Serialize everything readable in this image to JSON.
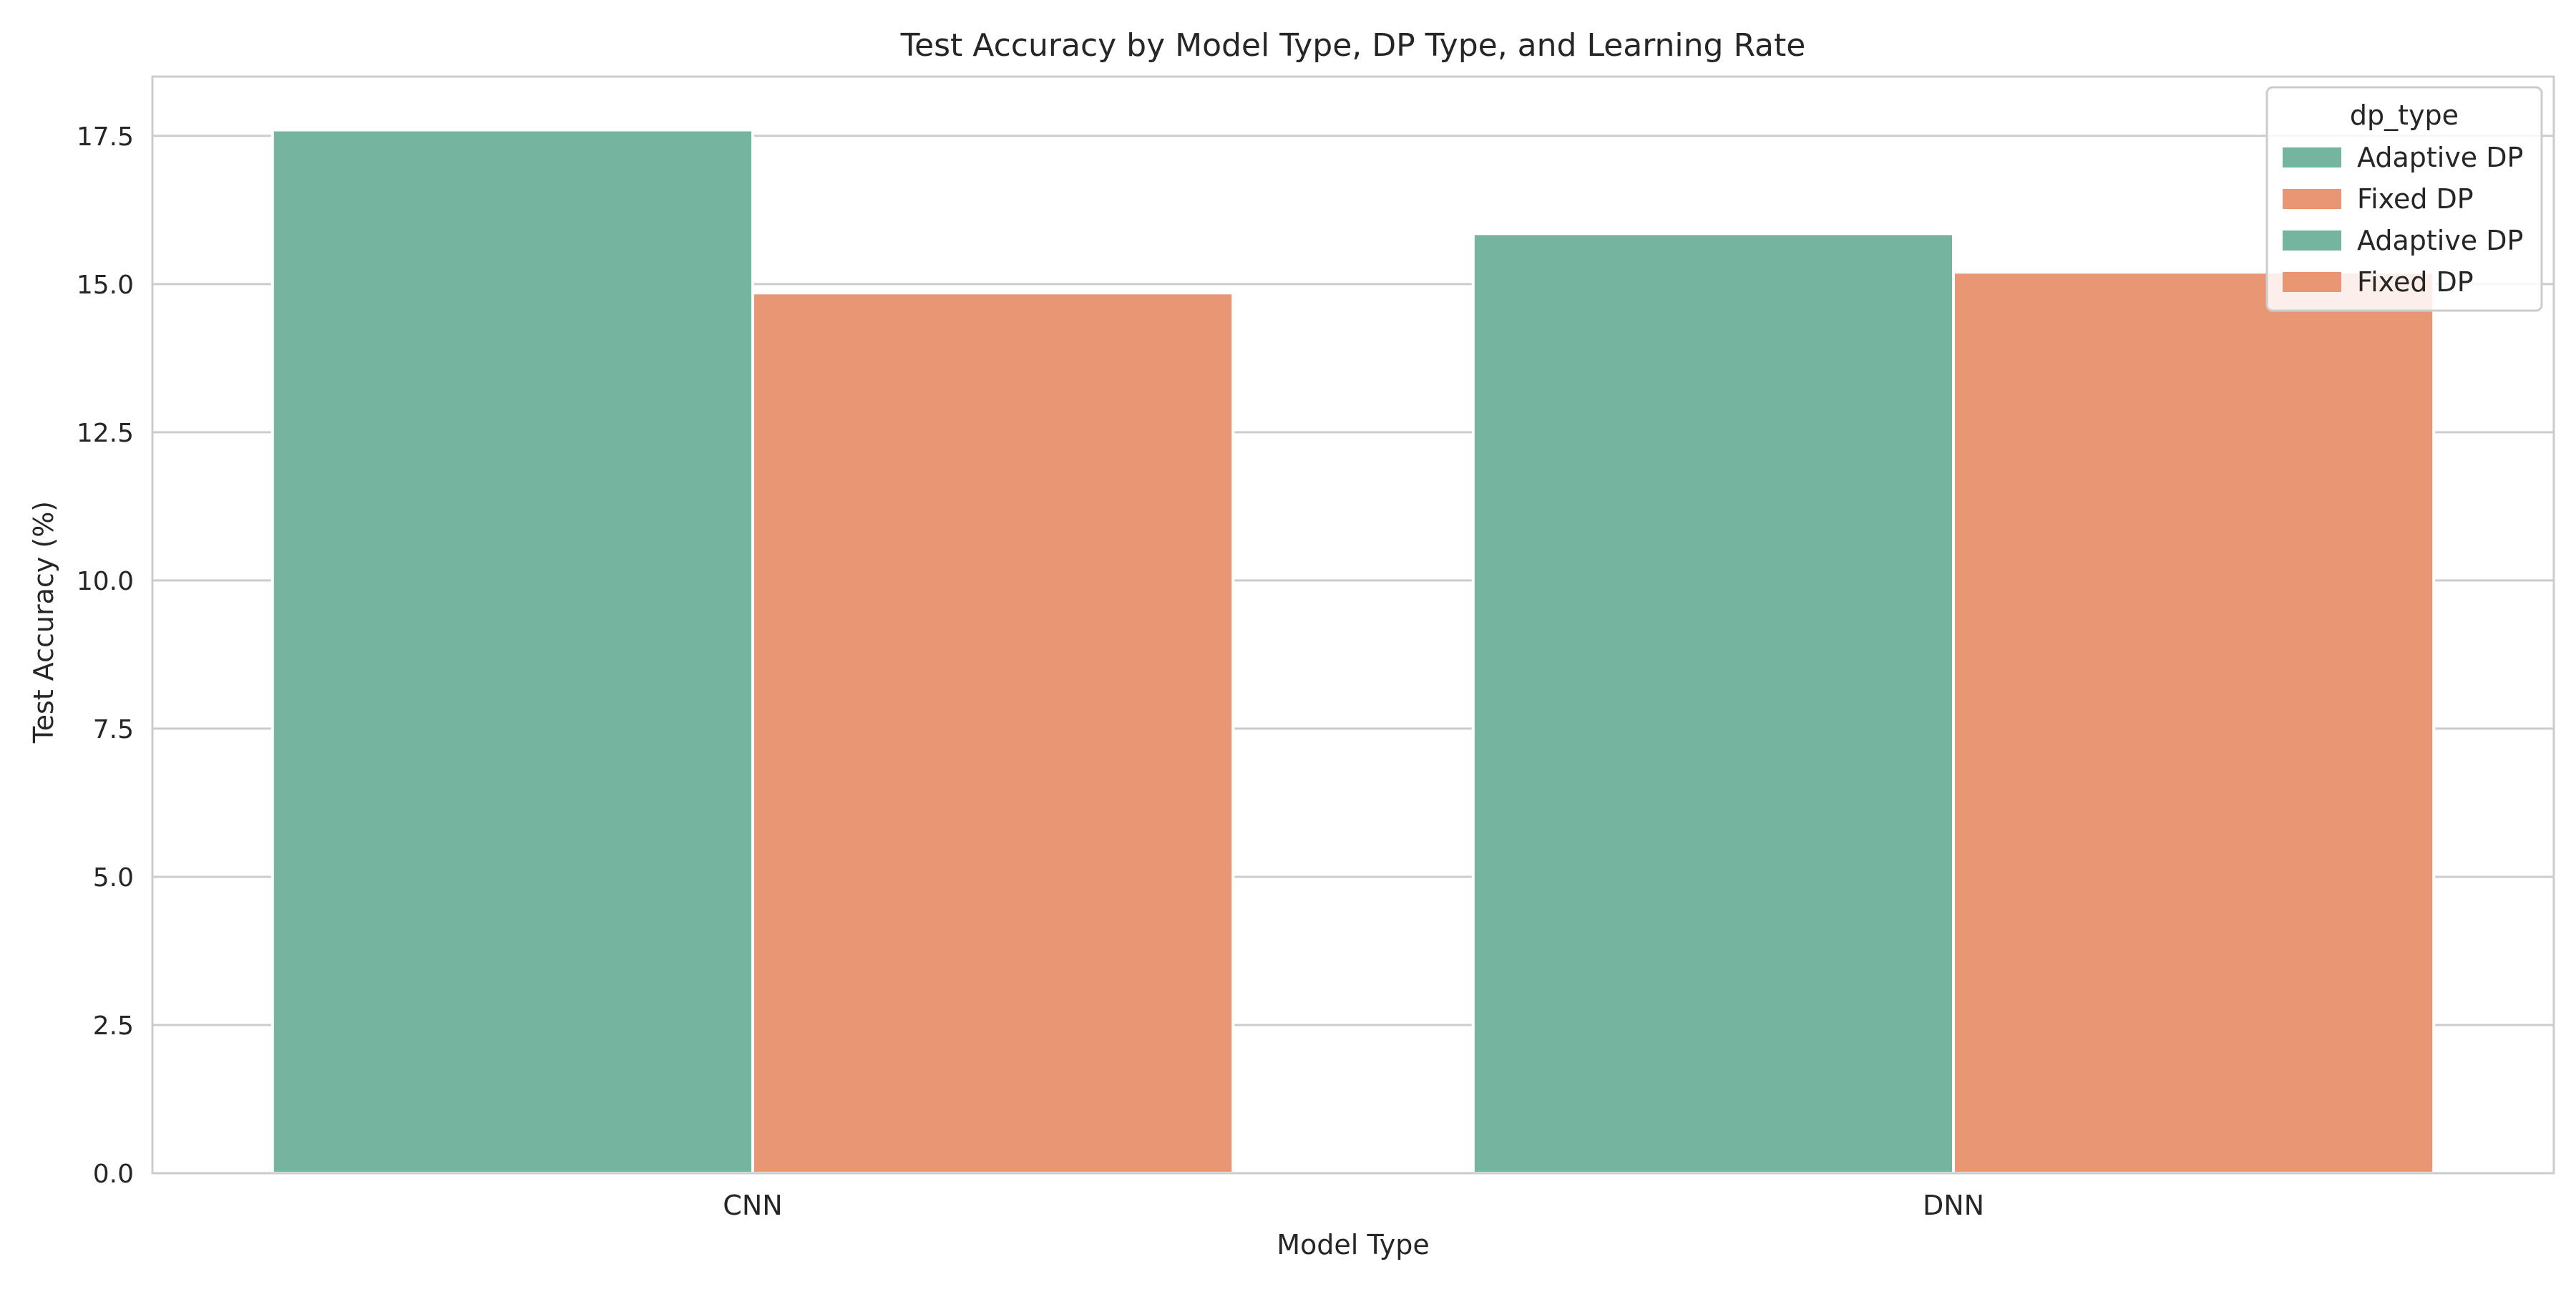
{
  "chart_data": {
    "type": "bar",
    "title": "Test Accuracy by Model Type, DP Type, and Learning Rate",
    "xlabel": "Model Type",
    "ylabel": "Test Accuracy (%)",
    "categories": [
      "CNN",
      "DNN"
    ],
    "series": [
      {
        "name": "Adaptive DP",
        "color": "#75b5a0",
        "values": [
          17.6,
          15.85
        ]
      },
      {
        "name": "Fixed DP",
        "color": "#e99674",
        "values": [
          14.85,
          15.2
        ]
      }
    ],
    "ylim": [
      0,
      18.5
    ],
    "yticks": [
      "0.0",
      "2.5",
      "5.0",
      "7.5",
      "10.0",
      "12.5",
      "15.0",
      "17.5"
    ],
    "grid": true,
    "legend": {
      "title": "dp_type",
      "placement": "top-right",
      "entries": [
        {
          "label": "Adaptive DP",
          "color": "#75b5a0"
        },
        {
          "label": "Fixed DP",
          "color": "#e99674"
        },
        {
          "label": "Adaptive DP",
          "color": "#75b5a0"
        },
        {
          "label": "Fixed DP",
          "color": "#e99674"
        }
      ]
    }
  }
}
